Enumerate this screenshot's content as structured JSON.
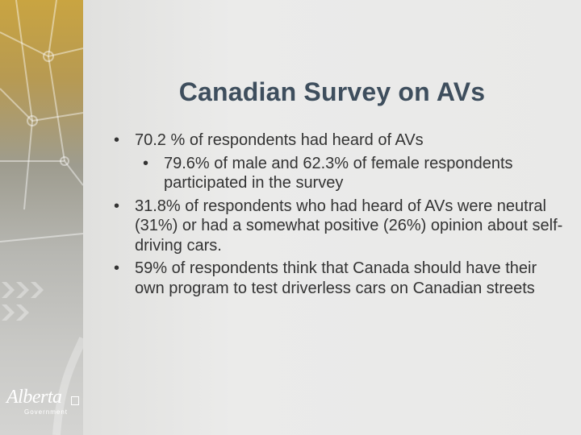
{
  "slide": {
    "title": "Canadian Survey on AVs",
    "bullets": [
      {
        "level": 1,
        "text": "70.2 % of respondents had heard of AVs"
      },
      {
        "level": 2,
        "text": "79.6% of male and 62.3% of female respondents participated in the survey"
      },
      {
        "level": 1,
        "text": "31.8% of respondents who had heard of AVs were neutral (31%) or had a somewhat positive (26%) opinion about self-driving cars."
      },
      {
        "level": 1,
        "text": "59% of respondents think that Canada should have their own program to test driverless cars on Canadian streets"
      }
    ]
  },
  "logo": {
    "wordmark": "Alberta",
    "subtitle": "Government"
  },
  "colors": {
    "title": "#3e4e5d",
    "body_text": "#333333",
    "side_band_top": "#c9a441",
    "background": "#e6e6e4"
  }
}
